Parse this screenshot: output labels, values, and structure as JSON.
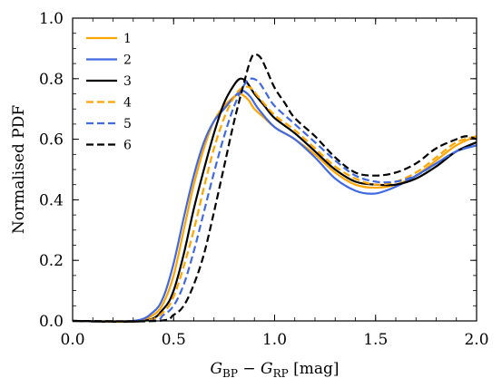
{
  "chart_data": {
    "type": "line",
    "xlabel": "G_BP − G_RP [mag]",
    "xlabel_parts": {
      "g1": "G",
      "sub1": "BP",
      "minus": " − ",
      "g2": "G",
      "sub2": "RP",
      "unit": " [mag]"
    },
    "ylabel": "Normalised PDF",
    "xlim": [
      0.0,
      2.0
    ],
    "ylim": [
      0.0,
      1.0
    ],
    "xticks": [
      "0.0",
      "0.5",
      "1.0",
      "1.5",
      "2.0"
    ],
    "yticks": [
      "0.0",
      "0.2",
      "0.4",
      "0.6",
      "0.8",
      "1.0"
    ],
    "legend_position": "upper-left",
    "series": [
      {
        "name": "1",
        "color": "#ffa500",
        "dash": "solid",
        "points": [
          [
            0.0,
            0.0
          ],
          [
            0.3,
            0.0
          ],
          [
            0.4,
            0.02
          ],
          [
            0.45,
            0.06
          ],
          [
            0.5,
            0.15
          ],
          [
            0.55,
            0.3
          ],
          [
            0.6,
            0.45
          ],
          [
            0.65,
            0.57
          ],
          [
            0.7,
            0.66
          ],
          [
            0.75,
            0.71
          ],
          [
            0.8,
            0.74
          ],
          [
            0.83,
            0.75
          ],
          [
            0.87,
            0.73
          ],
          [
            0.9,
            0.7
          ],
          [
            0.95,
            0.67
          ],
          [
            1.0,
            0.64
          ],
          [
            1.1,
            0.6
          ],
          [
            1.2,
            0.55
          ],
          [
            1.3,
            0.49
          ],
          [
            1.4,
            0.45
          ],
          [
            1.5,
            0.44
          ],
          [
            1.6,
            0.45
          ],
          [
            1.7,
            0.48
          ],
          [
            1.8,
            0.53
          ],
          [
            1.9,
            0.58
          ],
          [
            2.0,
            0.61
          ]
        ]
      },
      {
        "name": "2",
        "color": "#4169e1",
        "dash": "solid",
        "points": [
          [
            0.0,
            0.0
          ],
          [
            0.3,
            0.0
          ],
          [
            0.4,
            0.03
          ],
          [
            0.45,
            0.08
          ],
          [
            0.5,
            0.19
          ],
          [
            0.55,
            0.34
          ],
          [
            0.6,
            0.48
          ],
          [
            0.65,
            0.59
          ],
          [
            0.7,
            0.66
          ],
          [
            0.75,
            0.7
          ],
          [
            0.8,
            0.74
          ],
          [
            0.84,
            0.76
          ],
          [
            0.88,
            0.74
          ],
          [
            0.92,
            0.7
          ],
          [
            1.0,
            0.64
          ],
          [
            1.1,
            0.6
          ],
          [
            1.2,
            0.54
          ],
          [
            1.3,
            0.47
          ],
          [
            1.4,
            0.43
          ],
          [
            1.48,
            0.42
          ],
          [
            1.55,
            0.43
          ],
          [
            1.65,
            0.46
          ],
          [
            1.8,
            0.52
          ],
          [
            1.9,
            0.56
          ],
          [
            2.0,
            0.58
          ]
        ]
      },
      {
        "name": "3",
        "color": "#000000",
        "dash": "solid",
        "points": [
          [
            0.0,
            0.0
          ],
          [
            0.35,
            0.0
          ],
          [
            0.45,
            0.04
          ],
          [
            0.5,
            0.1
          ],
          [
            0.55,
            0.22
          ],
          [
            0.6,
            0.37
          ],
          [
            0.65,
            0.5
          ],
          [
            0.7,
            0.62
          ],
          [
            0.75,
            0.72
          ],
          [
            0.8,
            0.78
          ],
          [
            0.83,
            0.8
          ],
          [
            0.86,
            0.79
          ],
          [
            0.9,
            0.75
          ],
          [
            0.95,
            0.71
          ],
          [
            1.0,
            0.67
          ],
          [
            1.1,
            0.62
          ],
          [
            1.2,
            0.56
          ],
          [
            1.3,
            0.5
          ],
          [
            1.4,
            0.46
          ],
          [
            1.5,
            0.45
          ],
          [
            1.6,
            0.45
          ],
          [
            1.7,
            0.47
          ],
          [
            1.8,
            0.51
          ],
          [
            1.9,
            0.56
          ],
          [
            2.0,
            0.59
          ]
        ]
      },
      {
        "name": "4",
        "color": "#ffa500",
        "dash": "dashed",
        "points": [
          [
            0.0,
            0.0
          ],
          [
            0.35,
            0.0
          ],
          [
            0.45,
            0.03
          ],
          [
            0.5,
            0.08
          ],
          [
            0.55,
            0.18
          ],
          [
            0.6,
            0.3
          ],
          [
            0.65,
            0.44
          ],
          [
            0.7,
            0.57
          ],
          [
            0.75,
            0.67
          ],
          [
            0.8,
            0.74
          ],
          [
            0.84,
            0.77
          ],
          [
            0.88,
            0.77
          ],
          [
            0.92,
            0.74
          ],
          [
            1.0,
            0.68
          ],
          [
            1.1,
            0.63
          ],
          [
            1.2,
            0.57
          ],
          [
            1.3,
            0.51
          ],
          [
            1.4,
            0.47
          ],
          [
            1.5,
            0.45
          ],
          [
            1.6,
            0.46
          ],
          [
            1.7,
            0.49
          ],
          [
            1.8,
            0.54
          ],
          [
            1.9,
            0.59
          ],
          [
            2.0,
            0.61
          ]
        ]
      },
      {
        "name": "5",
        "color": "#4169e1",
        "dash": "dashed",
        "points": [
          [
            0.0,
            0.0
          ],
          [
            0.38,
            0.0
          ],
          [
            0.45,
            0.02
          ],
          [
            0.5,
            0.05
          ],
          [
            0.55,
            0.12
          ],
          [
            0.6,
            0.23
          ],
          [
            0.65,
            0.36
          ],
          [
            0.7,
            0.49
          ],
          [
            0.75,
            0.61
          ],
          [
            0.8,
            0.71
          ],
          [
            0.85,
            0.78
          ],
          [
            0.88,
            0.8
          ],
          [
            0.92,
            0.79
          ],
          [
            0.96,
            0.75
          ],
          [
            1.0,
            0.71
          ],
          [
            1.1,
            0.65
          ],
          [
            1.2,
            0.59
          ],
          [
            1.3,
            0.53
          ],
          [
            1.4,
            0.48
          ],
          [
            1.5,
            0.46
          ],
          [
            1.6,
            0.46
          ],
          [
            1.7,
            0.48
          ],
          [
            1.8,
            0.52
          ],
          [
            1.9,
            0.56
          ],
          [
            2.0,
            0.58
          ]
        ]
      },
      {
        "name": "6",
        "color": "#000000",
        "dash": "dashed",
        "points": [
          [
            0.0,
            0.0
          ],
          [
            0.42,
            0.0
          ],
          [
            0.5,
            0.02
          ],
          [
            0.55,
            0.05
          ],
          [
            0.6,
            0.12
          ],
          [
            0.65,
            0.22
          ],
          [
            0.7,
            0.36
          ],
          [
            0.75,
            0.51
          ],
          [
            0.8,
            0.66
          ],
          [
            0.85,
            0.79
          ],
          [
            0.88,
            0.86
          ],
          [
            0.9,
            0.88
          ],
          [
            0.93,
            0.87
          ],
          [
            0.96,
            0.83
          ],
          [
            1.0,
            0.77
          ],
          [
            1.05,
            0.72
          ],
          [
            1.1,
            0.67
          ],
          [
            1.2,
            0.61
          ],
          [
            1.3,
            0.54
          ],
          [
            1.4,
            0.49
          ],
          [
            1.5,
            0.48
          ],
          [
            1.6,
            0.49
          ],
          [
            1.7,
            0.52
          ],
          [
            1.8,
            0.57
          ],
          [
            1.9,
            0.6
          ],
          [
            1.95,
            0.61
          ],
          [
            2.0,
            0.6
          ]
        ]
      }
    ]
  }
}
